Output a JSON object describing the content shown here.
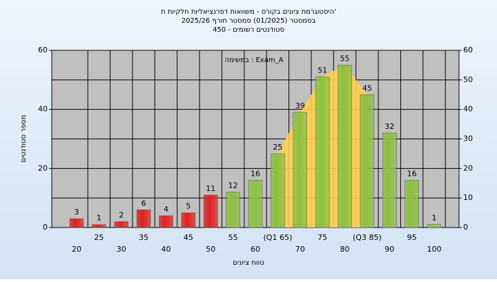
{
  "chart_data": {
    "type": "bar",
    "title": "'היסטוגרמת ציונים בקורס - משוואות דפרנציאליות חלקיות ת",
    "subtitle": "בסמסטר  (01/2025)  סמסטר חורף 2025/26",
    "subtitle2": "סטודנטים רשומים - 450",
    "annotation": "במשימה : Exam_A",
    "y_label": "מספר סטודנטים",
    "x_label": "טווח ציונים",
    "categories": [
      "20",
      "25",
      "30",
      "35",
      "40",
      "45",
      "50",
      "55",
      "60",
      "(Q1 65)",
      "70",
      "75",
      "80",
      "(Q3 85)",
      "90",
      "95",
      "100"
    ],
    "values": [
      3,
      1,
      2,
      6,
      4,
      5,
      11,
      12,
      16,
      25,
      39,
      51,
      55,
      45,
      32,
      16,
      1
    ],
    "colors": [
      "#e02020",
      "#e02020",
      "#e02020",
      "#e02020",
      "#e02020",
      "#e02020",
      "#e02020",
      "#8cc040",
      "#8cc040",
      "#8cc040",
      "#8cc040",
      "#8cc040",
      "#8cc040",
      "#8cc040",
      "#8cc040",
      "#8cc040",
      "#8cc040"
    ],
    "area_color": "#ffd050",
    "ylim": [
      0,
      60
    ],
    "yticks": [
      0,
      20,
      40,
      60
    ],
    "y2lim": [
      0,
      60
    ],
    "y2ticks": [
      0,
      10,
      20,
      30,
      40,
      50,
      60
    ],
    "grid": true
  }
}
